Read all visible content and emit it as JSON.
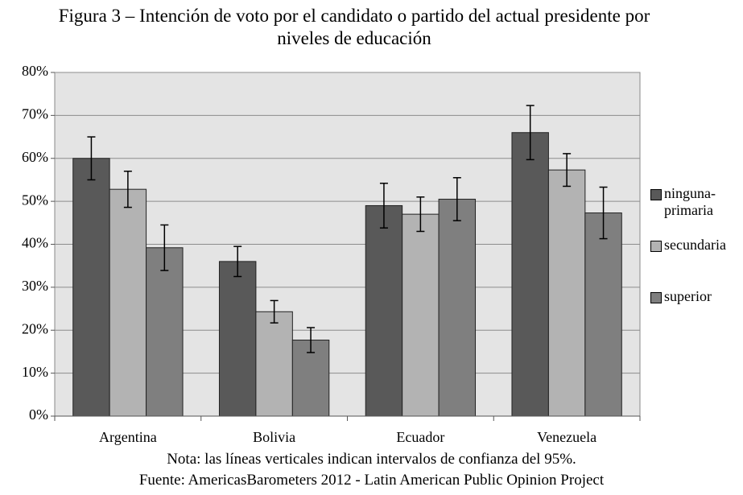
{
  "chart_data": {
    "type": "bar",
    "title": "Figura 3 – Intención de voto por el candidato o partido del actual presidente por niveles de educación",
    "categories": [
      "Argentina",
      "Bolivia",
      "Ecuador",
      "Venezuela"
    ],
    "series": [
      {
        "name": "ninguna-primaria",
        "color": "#595959",
        "values": [
          60,
          36,
          49,
          66
        ],
        "errors": [
          5,
          3.5,
          5.2,
          6.3
        ]
      },
      {
        "name": "secundaria",
        "color": "#b3b3b3",
        "values": [
          52.8,
          24.3,
          47,
          57.3
        ],
        "errors": [
          4.2,
          2.6,
          4,
          3.8
        ]
      },
      {
        "name": "superior",
        "color": "#7f7f7f",
        "values": [
          39.2,
          17.7,
          50.5,
          47.3
        ],
        "errors": [
          5.3,
          2.9,
          5,
          6
        ]
      }
    ],
    "ylim": [
      0,
      80
    ],
    "yticks": [
      {
        "value": 0,
        "label": "0%"
      },
      {
        "value": 10,
        "label": "10%"
      },
      {
        "value": 20,
        "label": "20%"
      },
      {
        "value": 30,
        "label": "30%"
      },
      {
        "value": 40,
        "label": "40%"
      },
      {
        "value": 50,
        "label": "50%"
      },
      {
        "value": 60,
        "label": "60%"
      },
      {
        "value": 70,
        "label": "70%"
      },
      {
        "value": 80,
        "label": "80%"
      }
    ],
    "grid": true,
    "legend": "right",
    "note": "Nota: las líneas verticales indican intervalos de confianza del 95%.",
    "source": "Fuente: AmericasBarometers 2012 - Latin American Public Opinion Project"
  }
}
